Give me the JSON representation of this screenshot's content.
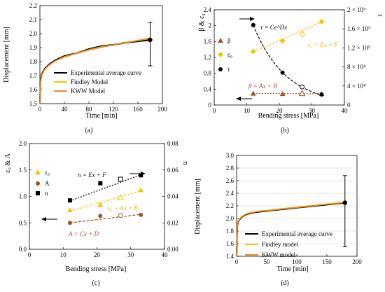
{
  "colors": {
    "experimental": "#000000",
    "findley": "#f5c400",
    "kww": "#ee8a2a",
    "beta": "#a0522d",
    "eps0": "#f5c400",
    "tau": "#000000",
    "A": "#a0522d",
    "n": "#000000"
  },
  "chart_data": [
    {
      "type": "line",
      "caption": "(a)",
      "xlabel": "Time [min]",
      "ylabel": "Displacement [mm]",
      "xlim": [
        0,
        200
      ],
      "ylim": [
        1.5,
        2.2
      ],
      "xticks": [
        "0",
        "40",
        "80",
        "120",
        "160",
        "200"
      ],
      "yticks": [
        "1.5",
        "1.6",
        "1.7",
        "1.8",
        "1.9",
        "2.0",
        "2.1",
        "2.2"
      ],
      "legend": [
        "Experimental average curve",
        "Findley Model",
        "KWW Model"
      ],
      "legend_position": "bottom-right",
      "series": [
        {
          "name": "Experimental average curve",
          "x": [
            0,
            1,
            3,
            8,
            15,
            25,
            40,
            60,
            80,
            100,
            120,
            140,
            160,
            180
          ],
          "y": [
            1.5,
            1.66,
            1.71,
            1.75,
            1.78,
            1.81,
            1.84,
            1.86,
            1.89,
            1.91,
            1.92,
            1.935,
            1.945,
            1.955
          ]
        },
        {
          "name": "Findley Model",
          "x": [
            0,
            1,
            3,
            8,
            15,
            25,
            40,
            60,
            80,
            100,
            120,
            140,
            160,
            180
          ],
          "y": [
            1.5,
            1.65,
            1.7,
            1.745,
            1.775,
            1.805,
            1.835,
            1.86,
            1.885,
            1.905,
            1.92,
            1.935,
            1.95,
            1.965
          ]
        },
        {
          "name": "KWW Model",
          "x": [
            0,
            1,
            3,
            8,
            15,
            25,
            40,
            60,
            80,
            100,
            120,
            140,
            160,
            180
          ],
          "y": [
            1.5,
            1.655,
            1.705,
            1.745,
            1.775,
            1.805,
            1.832,
            1.858,
            1.882,
            1.902,
            1.92,
            1.936,
            1.952,
            1.968
          ]
        }
      ],
      "error_bar": {
        "x": 180,
        "y": 1.955,
        "low": 1.77,
        "high": 2.08
      }
    },
    {
      "type": "scatter",
      "caption": "(b)",
      "xlabel": "Bending stress [MPa]",
      "ylabel": "β & ε₀",
      "y2label": "τ",
      "xlim": [
        0,
        40
      ],
      "ylim": [
        0,
        2.4
      ],
      "y2lim": [
        0,
        200000
      ],
      "xticks": [
        "0",
        "10",
        "20",
        "30",
        "40"
      ],
      "yticks": [
        "0",
        "0.4",
        "0.8",
        "1.2",
        "1.6",
        "2",
        "2.4"
      ],
      "y2ticks": [
        "0",
        "4 × 10⁴",
        "8 × 10⁴",
        "1.2 × 10⁵",
        "1.6 × 10⁵",
        "2 × 10⁵"
      ],
      "legend": [
        "β",
        "ε₀",
        "τ"
      ],
      "legend_position": "left",
      "series": [
        {
          "name": "β",
          "x": [
            12,
            21,
            33
          ],
          "y": [
            0.29,
            0.28,
            0.28
          ],
          "open": {
            "x": 27,
            "y": 0.29
          }
        },
        {
          "name": "ε₀",
          "x": [
            12,
            21,
            33
          ],
          "y": [
            1.35,
            1.62,
            2.1
          ],
          "open": {
            "x": 27,
            "y": 1.78
          }
        },
        {
          "name": "τ",
          "x": [
            12,
            21,
            33
          ],
          "y": [
            168000,
            68000,
            22000
          ],
          "open": {
            "x": 27,
            "y": 38000
          }
        }
      ],
      "annotations": [
        "τ = Ce^Dx",
        "ε₀ = Ex + F",
        "β = Ax + B"
      ]
    },
    {
      "type": "scatter",
      "caption": "(c)",
      "xlabel": "Bending stress [MPa]",
      "ylabel": "ε₀ & A",
      "y2label": "n",
      "xlim": [
        0,
        40
      ],
      "ylim": [
        0,
        2
      ],
      "y2lim": [
        0,
        0.08
      ],
      "xticks": [
        "0",
        "10",
        "20",
        "30",
        "40"
      ],
      "yticks": [
        "0.0",
        "0.5",
        "1.0",
        "1.5",
        "2.0"
      ],
      "y2ticks": [
        "0.00",
        "0.02",
        "0.04",
        "0.06",
        "0.08"
      ],
      "legend": [
        "ε₀",
        "A",
        "n"
      ],
      "legend_position": "top-left",
      "series": [
        {
          "name": "ε₀",
          "x": [
            12,
            21,
            33
          ],
          "y": [
            0.74,
            0.84,
            1.12
          ],
          "open": {
            "x": 27,
            "y": 0.98
          }
        },
        {
          "name": "A",
          "x": [
            12,
            21,
            33
          ],
          "y": [
            0.5,
            0.63,
            0.65
          ],
          "open": {
            "x": 27,
            "y": 0.64
          }
        },
        {
          "name": "n",
          "x": [
            12,
            21,
            33
          ],
          "y": [
            0.037,
            0.05,
            0.056
          ],
          "open": {
            "x": 27,
            "y": 0.053
          }
        }
      ],
      "annotations": [
        "n = Ex + F",
        "ε₀ = Ax + B",
        "A = Cx + D"
      ]
    },
    {
      "type": "line",
      "caption": "(d)",
      "xlabel": "Time [min]",
      "ylabel": "Displacement [mm]",
      "xlim": [
        0,
        200
      ],
      "ylim": [
        1.4,
        3.0
      ],
      "xticks": [
        "0",
        "50",
        "100",
        "150",
        "200"
      ],
      "yticks": [
        "1.4",
        "1.6",
        "1.8",
        "2.0",
        "2.2",
        "2.4",
        "2.6",
        "2.8",
        "3.0"
      ],
      "legend": [
        "Experimental average curve",
        "Findley model",
        "KWW model"
      ],
      "legend_position": "bottom-right",
      "series": [
        {
          "name": "Experimental average curve",
          "x": [
            0,
            1,
            3,
            8,
            15,
            25,
            40,
            60,
            80,
            100,
            120,
            140,
            160,
            180
          ],
          "y": [
            1.4,
            1.88,
            1.96,
            2.02,
            2.06,
            2.09,
            2.11,
            2.13,
            2.15,
            2.17,
            2.19,
            2.21,
            2.23,
            2.25
          ]
        },
        {
          "name": "Findley model",
          "x": [
            0,
            1,
            3,
            8,
            15,
            25,
            40,
            60,
            80,
            100,
            120,
            140,
            160,
            180
          ],
          "y": [
            1.4,
            1.9,
            1.97,
            2.03,
            2.07,
            2.1,
            2.12,
            2.14,
            2.16,
            2.18,
            2.2,
            2.22,
            2.24,
            2.26
          ]
        },
        {
          "name": "KWW model",
          "x": [
            0,
            1,
            3,
            8,
            15,
            25,
            40,
            60,
            80,
            100,
            120,
            140,
            160,
            180
          ],
          "y": [
            1.4,
            1.89,
            1.965,
            2.025,
            2.065,
            2.095,
            2.115,
            2.135,
            2.155,
            2.175,
            2.195,
            2.215,
            2.235,
            2.255
          ]
        }
      ],
      "error_bar": {
        "x": 180,
        "y": 2.25,
        "low": 1.55,
        "high": 2.68
      }
    }
  ]
}
